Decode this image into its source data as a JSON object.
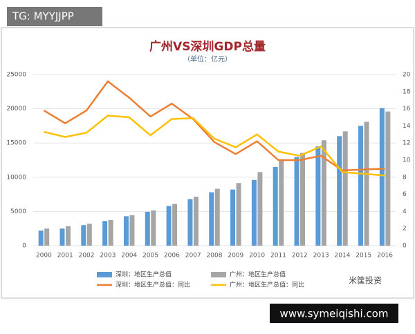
{
  "header": {
    "tag": "TG: MYYJJPP"
  },
  "chart_data": {
    "type": "combo",
    "title": "广州VS深圳GDP总量",
    "subtitle": "（单位：亿元）",
    "categories": [
      "2000",
      "2001",
      "2002",
      "2003",
      "2004",
      "2005",
      "2006",
      "2007",
      "2008",
      "2009",
      "2010",
      "2011",
      "2012",
      "2013",
      "2014",
      "2015",
      "2016"
    ],
    "series": [
      {
        "name": "深圳：地区生产总值",
        "type": "bar",
        "color": "#5b9bd5",
        "values": [
          2200,
          2500,
          3000,
          3600,
          4300,
          4950,
          5800,
          6800,
          7800,
          8200,
          9600,
          11500,
          12950,
          14500,
          16000,
          17500,
          20100
        ]
      },
      {
        "name": "广州：地区生产总值",
        "type": "bar",
        "color": "#a5a5a5",
        "values": [
          2500,
          2850,
          3200,
          3750,
          4450,
          5150,
          6100,
          7150,
          8300,
          9150,
          10750,
          12400,
          13550,
          15400,
          16700,
          18100,
          19600
        ]
      },
      {
        "name": "深圳：地区生产总值：同比",
        "type": "line",
        "axis": "y2",
        "color": "#ed7d31",
        "values": [
          15.8,
          14.3,
          15.8,
          19.2,
          17.3,
          15.1,
          16.6,
          14.8,
          12.1,
          10.7,
          12.2,
          10.0,
          10.0,
          10.5,
          8.8,
          8.9,
          9.0
        ]
      },
      {
        "name": "广州：地区生产总值：同比",
        "type": "line",
        "axis": "y2",
        "color": "#ffc000",
        "values": [
          13.3,
          12.7,
          13.2,
          15.2,
          15.0,
          12.9,
          14.8,
          14.9,
          12.5,
          11.5,
          13.0,
          11.0,
          10.5,
          11.6,
          8.6,
          8.4,
          8.2
        ]
      }
    ],
    "ylim": [
      0,
      25000
    ],
    "yticks": [
      0,
      5000,
      10000,
      15000,
      20000,
      25000
    ],
    "y2lim": [
      0,
      20
    ],
    "y2ticks": [
      0,
      2,
      4,
      6,
      8,
      10,
      12,
      14,
      16,
      18,
      20
    ],
    "grid": true,
    "legend": "bottom"
  },
  "footer": {
    "watermark": "米筐投资",
    "url": "www.symeiqishi.com"
  }
}
